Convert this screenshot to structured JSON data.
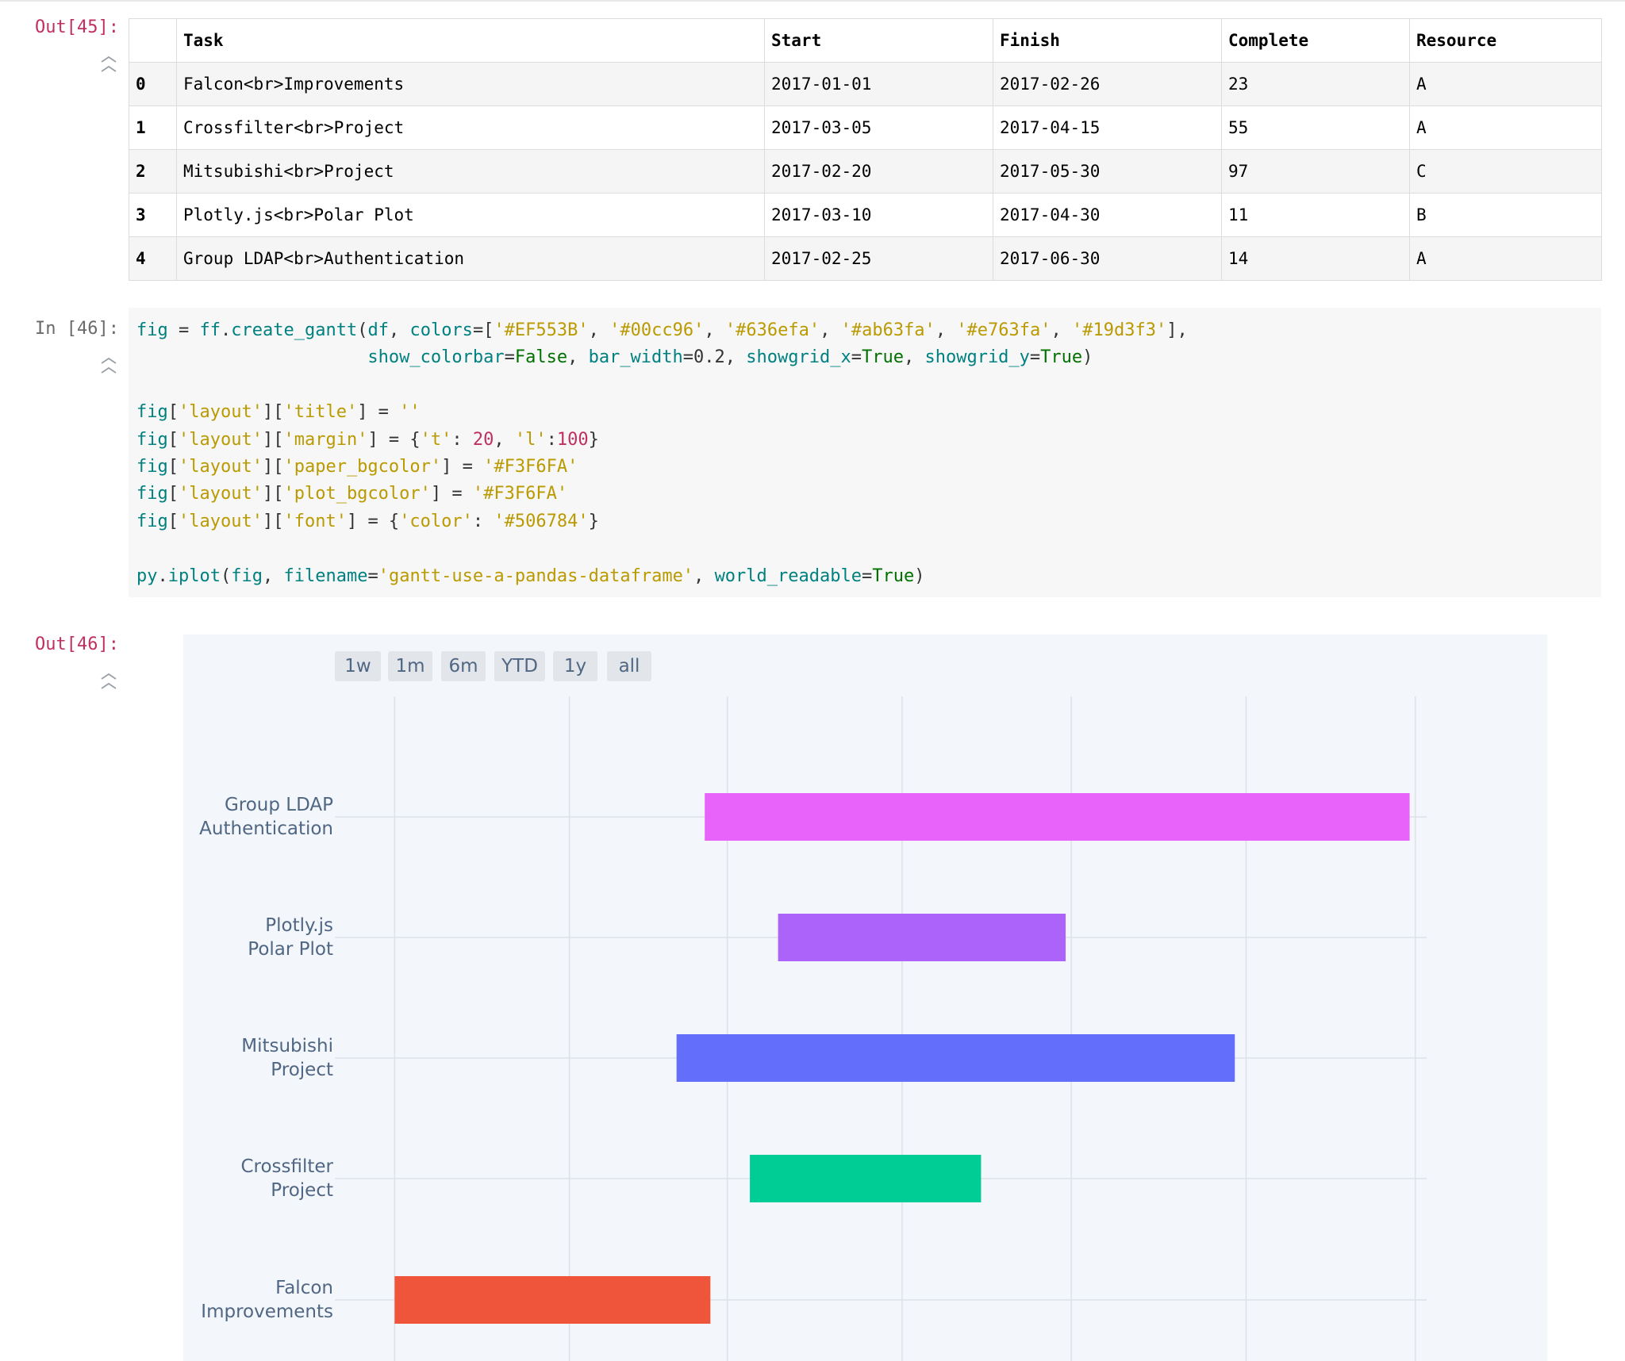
{
  "cells": {
    "out45": {
      "prompt": "Out[45]:"
    },
    "in46": {
      "prompt": "In [46]:"
    },
    "out46": {
      "prompt": "Out[46]:"
    }
  },
  "dataframe": {
    "columns": [
      "",
      "Task",
      "Start",
      "Finish",
      "Complete",
      "Resource"
    ],
    "rows": [
      {
        "index": "0",
        "task": "Falcon<br>Improvements",
        "start": "2017-01-01",
        "finish": "2017-02-26",
        "complete": "23",
        "resource": "A"
      },
      {
        "index": "1",
        "task": "Crossfilter<br>Project",
        "start": "2017-03-05",
        "finish": "2017-04-15",
        "complete": "55",
        "resource": "A"
      },
      {
        "index": "2",
        "task": "Mitsubishi<br>Project",
        "start": "2017-02-20",
        "finish": "2017-05-30",
        "complete": "97",
        "resource": "C"
      },
      {
        "index": "3",
        "task": "Plotly.js<br>Polar Plot",
        "start": "2017-03-10",
        "finish": "2017-04-30",
        "complete": "11",
        "resource": "B"
      },
      {
        "index": "4",
        "task": "Group LDAP<br>Authentication",
        "start": "2017-02-25",
        "finish": "2017-06-30",
        "complete": "14",
        "resource": "A"
      }
    ]
  },
  "code_lines": [
    [
      [
        "k",
        "fig"
      ],
      [
        "p",
        " = "
      ],
      [
        "k",
        "ff"
      ],
      [
        "p",
        "."
      ],
      [
        "k",
        "create_gantt"
      ],
      [
        "p",
        "("
      ],
      [
        "k",
        "df"
      ],
      [
        "p",
        ", "
      ],
      [
        "k",
        "colors"
      ],
      [
        "p",
        "=["
      ],
      [
        "s",
        "'#EF553B'"
      ],
      [
        "p",
        ", "
      ],
      [
        "s",
        "'#00cc96'"
      ],
      [
        "p",
        ", "
      ],
      [
        "s",
        "'#636efa'"
      ],
      [
        "p",
        ", "
      ],
      [
        "s",
        "'#ab63fa'"
      ],
      [
        "p",
        ", "
      ],
      [
        "s",
        "'#e763fa'"
      ],
      [
        "p",
        ", "
      ],
      [
        "s",
        "'#19d3f3'"
      ],
      [
        "p",
        "],"
      ]
    ],
    [
      [
        "p",
        "                      "
      ],
      [
        "k",
        "show_colorbar"
      ],
      [
        "p",
        "="
      ],
      [
        "b",
        "False"
      ],
      [
        "p",
        ", "
      ],
      [
        "k",
        "bar_width"
      ],
      [
        "p",
        "=0.2, "
      ],
      [
        "k",
        "showgrid_x"
      ],
      [
        "p",
        "="
      ],
      [
        "b",
        "True"
      ],
      [
        "p",
        ", "
      ],
      [
        "k",
        "showgrid_y"
      ],
      [
        "p",
        "="
      ],
      [
        "b",
        "True"
      ],
      [
        "p",
        ")"
      ]
    ],
    [],
    [
      [
        "k",
        "fig"
      ],
      [
        "p",
        "["
      ],
      [
        "s",
        "'layout'"
      ],
      [
        "p",
        "]["
      ],
      [
        "s",
        "'title'"
      ],
      [
        "p",
        "] = "
      ],
      [
        "s",
        "''"
      ]
    ],
    [
      [
        "k",
        "fig"
      ],
      [
        "p",
        "["
      ],
      [
        "s",
        "'layout'"
      ],
      [
        "p",
        "]["
      ],
      [
        "s",
        "'margin'"
      ],
      [
        "p",
        "] = {"
      ],
      [
        "s",
        "'t'"
      ],
      [
        "p",
        ": "
      ],
      [
        "n",
        "20"
      ],
      [
        "p",
        ", "
      ],
      [
        "s",
        "'l'"
      ],
      [
        "p",
        ":"
      ],
      [
        "n",
        "100"
      ],
      [
        "p",
        "}"
      ]
    ],
    [
      [
        "k",
        "fig"
      ],
      [
        "p",
        "["
      ],
      [
        "s",
        "'layout'"
      ],
      [
        "p",
        "]["
      ],
      [
        "s",
        "'paper_bgcolor'"
      ],
      [
        "p",
        "] = "
      ],
      [
        "s",
        "'#F3F6FA'"
      ]
    ],
    [
      [
        "k",
        "fig"
      ],
      [
        "p",
        "["
      ],
      [
        "s",
        "'layout'"
      ],
      [
        "p",
        "]["
      ],
      [
        "s",
        "'plot_bgcolor'"
      ],
      [
        "p",
        "] = "
      ],
      [
        "s",
        "'#F3F6FA'"
      ]
    ],
    [
      [
        "k",
        "fig"
      ],
      [
        "p",
        "["
      ],
      [
        "s",
        "'layout'"
      ],
      [
        "p",
        "]["
      ],
      [
        "s",
        "'font'"
      ],
      [
        "p",
        "] = {"
      ],
      [
        "s",
        "'color'"
      ],
      [
        "p",
        ": "
      ],
      [
        "s",
        "'#506784'"
      ],
      [
        "p",
        "}"
      ]
    ],
    [],
    [
      [
        "k",
        "py"
      ],
      [
        "p",
        "."
      ],
      [
        "k",
        "iplot"
      ],
      [
        "p",
        "("
      ],
      [
        "k",
        "fig"
      ],
      [
        "p",
        ", "
      ],
      [
        "k",
        "filename"
      ],
      [
        "p",
        "="
      ],
      [
        "s",
        "'gantt-use-a-pandas-dataframe'"
      ],
      [
        "p",
        ", "
      ],
      [
        "k",
        "world_readable"
      ],
      [
        "p",
        "="
      ],
      [
        "b",
        "True"
      ],
      [
        "p",
        ")"
      ]
    ]
  ],
  "range_selector": [
    "1w",
    "1m",
    "6m",
    "YTD",
    "1y",
    "all"
  ],
  "colors": {
    "paper_bg": "#F3F6FA",
    "font": "#506784",
    "button_bg": "#e2e5ea",
    "grid": "#dde2e9"
  },
  "chart_data": {
    "type": "gantt",
    "title": "",
    "x_axis": {
      "type": "date",
      "range": [
        "2016-12-29",
        "2017-07-04"
      ],
      "showgrid": true
    },
    "y_axis": {
      "showgrid": true,
      "categories_bottom_to_top": [
        "Falcon<br>Improvements",
        "Crossfilter<br>Project",
        "Mitsubishi<br>Project",
        "Plotly.js<br>Polar Plot",
        "Group LDAP<br>Authentication"
      ]
    },
    "bars": [
      {
        "label_lines": [
          "Falcon",
          "Improvements"
        ],
        "start": "2017-01-01",
        "finish": "2017-02-26",
        "color": "#EF553B"
      },
      {
        "label_lines": [
          "Crossfilter",
          "Project"
        ],
        "start": "2017-03-05",
        "finish": "2017-04-15",
        "color": "#00cc96"
      },
      {
        "label_lines": [
          "Mitsubishi",
          "Project"
        ],
        "start": "2017-02-20",
        "finish": "2017-05-30",
        "color": "#636efa"
      },
      {
        "label_lines": [
          "Plotly.js",
          "Polar Plot"
        ],
        "start": "2017-03-10",
        "finish": "2017-04-30",
        "color": "#ab63fa"
      },
      {
        "label_lines": [
          "Group LDAP",
          "Authentication"
        ],
        "start": "2017-02-25",
        "finish": "2017-06-30",
        "color": "#e763fa"
      }
    ],
    "bar_width": 0.2,
    "show_colorbar": false
  }
}
